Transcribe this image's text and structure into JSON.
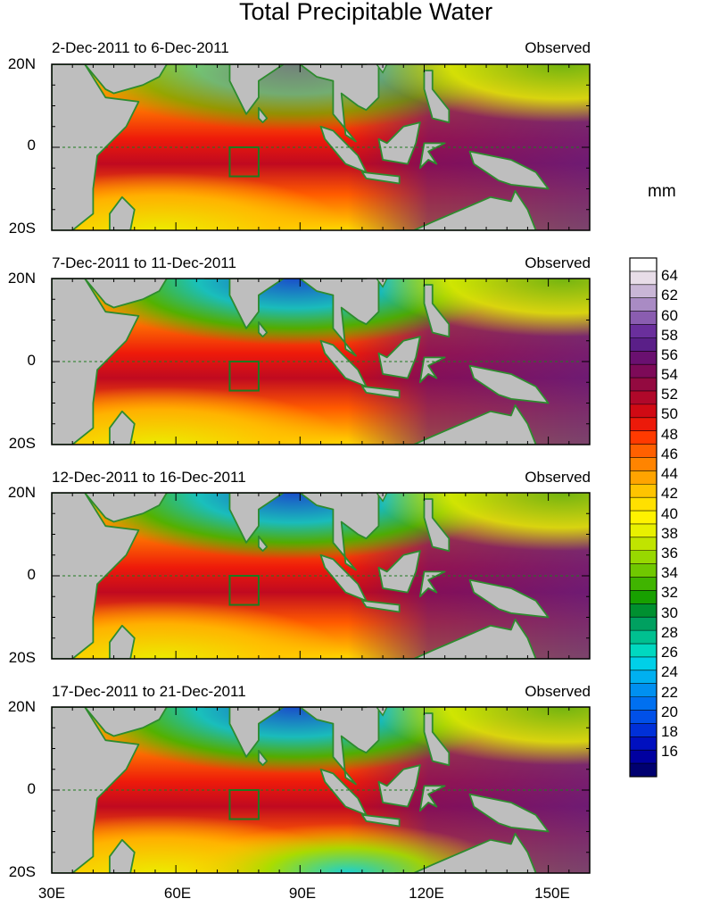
{
  "title": "Total Precipitable Water",
  "units": "mm",
  "panels": [
    {
      "date_range": "2-Dec-2011 to 6-Dec-2011",
      "tag": "Observed",
      "lat_top": "20N",
      "lat_mid": "0",
      "lat_bottom": "20S"
    },
    {
      "date_range": "7-Dec-2011 to 11-Dec-2011",
      "tag": "Observed",
      "lat_top": "20N",
      "lat_mid": "0",
      "lat_bottom": "20S"
    },
    {
      "date_range": "12-Dec-2011 to 16-Dec-2011",
      "tag": "Observed",
      "lat_top": "20N",
      "lat_mid": "0",
      "lat_bottom": "20S"
    },
    {
      "date_range": "17-Dec-2011 to 21-Dec-2011",
      "tag": "Observed",
      "lat_top": "20N",
      "lat_mid": "0",
      "lat_bottom": "20S"
    }
  ],
  "longitude_labels": [
    "30E",
    "60E",
    "90E",
    "120E",
    "150E"
  ],
  "colorbar": {
    "labels": [
      "64",
      "62",
      "60",
      "58",
      "56",
      "54",
      "52",
      "50",
      "48",
      "46",
      "44",
      "42",
      "40",
      "38",
      "36",
      "34",
      "32",
      "30",
      "28",
      "26",
      "24",
      "22",
      "20",
      "18",
      "16"
    ],
    "colors": [
      "#ffffff",
      "#e8dde8",
      "#c9b6d6",
      "#a98bc4",
      "#8a5db0",
      "#6a2f9c",
      "#5a1f88",
      "#6a1070",
      "#7d0a58",
      "#930a40",
      "#b0082a",
      "#d00a14",
      "#ec1a0a",
      "#ff3a00",
      "#ff6000",
      "#ff8400",
      "#ffa400",
      "#ffc400",
      "#ffe000",
      "#fff200",
      "#e8f000",
      "#c0e400",
      "#98d800",
      "#70c800",
      "#40b400",
      "#18a000",
      "#009030",
      "#00a060",
      "#00c090",
      "#00d8c0",
      "#00d0e8",
      "#00b0f0",
      "#0090f0",
      "#0070f0",
      "#0050e8",
      "#0030d8",
      "#0010c0",
      "#0000a0",
      "#000070"
    ]
  },
  "box_color": "#1f7a1f",
  "land_color": "#bebebe",
  "coast_color": "#2e8b2e"
}
